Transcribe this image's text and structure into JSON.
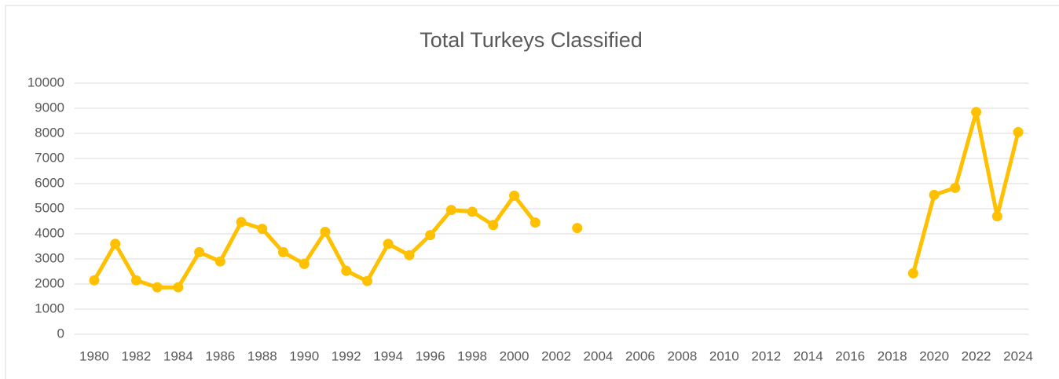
{
  "chart_data": {
    "type": "line",
    "title": "Total Turkeys Classified",
    "x": [
      1980,
      1981,
      1982,
      1983,
      1984,
      1985,
      1986,
      1987,
      1988,
      1989,
      1990,
      1991,
      1992,
      1993,
      1994,
      1995,
      1996,
      1997,
      1998,
      1999,
      2000,
      2001,
      2002,
      2003,
      2004,
      2005,
      2006,
      2007,
      2008,
      2009,
      2010,
      2011,
      2012,
      2013,
      2014,
      2015,
      2016,
      2017,
      2018,
      2019,
      2020,
      2021,
      2022,
      2023,
      2024
    ],
    "values": [
      2150,
      3600,
      2150,
      1870,
      1870,
      3270,
      2900,
      4470,
      4200,
      3270,
      2800,
      4080,
      2530,
      2120,
      3600,
      3150,
      3950,
      4950,
      4880,
      4350,
      5520,
      4450,
      null,
      4230,
      null,
      null,
      null,
      null,
      null,
      null,
      null,
      null,
      null,
      null,
      null,
      null,
      null,
      null,
      null,
      2430,
      5550,
      5830,
      8850,
      4700,
      8050
    ],
    "color": "#ffc000",
    "xlim": [
      1979.5,
      2024.5
    ],
    "xticks": [
      1980,
      1982,
      1984,
      1986,
      1988,
      1990,
      1992,
      1994,
      1996,
      1998,
      2000,
      2002,
      2004,
      2006,
      2008,
      2010,
      2012,
      2014,
      2016,
      2018,
      2020,
      2022,
      2024
    ],
    "ylim": [
      0,
      10000
    ],
    "yticks": [
      0,
      1000,
      2000,
      3000,
      4000,
      5000,
      6000,
      7000,
      8000,
      9000,
      10000
    ],
    "grid": true
  }
}
